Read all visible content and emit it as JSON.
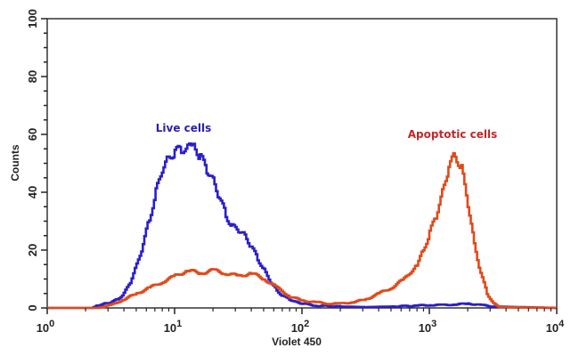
{
  "chart_data": {
    "type": "line",
    "title": "",
    "xlabel": "Violet 450",
    "ylabel": "Counts",
    "xscale": "log",
    "xlim": [
      1,
      10000
    ],
    "ylim": [
      0,
      100
    ],
    "grid": false,
    "x_ticks": [
      {
        "base": "10",
        "exp": "0",
        "value": 1
      },
      {
        "base": "10",
        "exp": "1",
        "value": 10
      },
      {
        "base": "10",
        "exp": "2",
        "value": 100
      },
      {
        "base": "10",
        "exp": "3",
        "value": 1000
      },
      {
        "base": "10",
        "exp": "4",
        "value": 10000
      }
    ],
    "y_ticks": [
      "0",
      "20",
      "40",
      "60",
      "80",
      "100"
    ],
    "y_tick_values": [
      0,
      20,
      40,
      60,
      80,
      100
    ],
    "annotations": [
      {
        "text": "Live cells",
        "series": "Live cells",
        "color": "#2a1fb0"
      },
      {
        "text": "Apoptotic cells",
        "series": "Apoptotic cells",
        "color": "#c0282a"
      }
    ],
    "series": [
      {
        "name": "Live cells",
        "color": "#2a1fc8",
        "log10_x": [
          0.0,
          0.35,
          0.4,
          0.45,
          0.5,
          0.55,
          0.6,
          0.65,
          0.7,
          0.75,
          0.8,
          0.85,
          0.9,
          0.95,
          1.0,
          1.05,
          1.1,
          1.13,
          1.16,
          1.2,
          1.25,
          1.3,
          1.35,
          1.4,
          1.45,
          1.5,
          1.55,
          1.6,
          1.65,
          1.7,
          1.75,
          1.8,
          1.85,
          1.9,
          1.95,
          2.0,
          2.1,
          2.3,
          2.5,
          2.7,
          2.9,
          3.0,
          3.1,
          3.2,
          3.3,
          3.4,
          3.5,
          4.0
        ],
        "counts": [
          0,
          0,
          1,
          1.5,
          2,
          3,
          5,
          9,
          15,
          22,
          31,
          40,
          48,
          52,
          54,
          55,
          55,
          57,
          55,
          52,
          48,
          44,
          38,
          32,
          28,
          27,
          25,
          21,
          17,
          13,
          9,
          6,
          4,
          3,
          2,
          1.5,
          0.8,
          0.5,
          0.3,
          0.5,
          0.8,
          1,
          1,
          1.2,
          1.5,
          1,
          0.5,
          0
        ]
      },
      {
        "name": "Apoptotic cells",
        "color": "#e04a1a",
        "log10_x": [
          0.0,
          0.4,
          0.5,
          0.6,
          0.7,
          0.8,
          0.9,
          1.0,
          1.1,
          1.2,
          1.3,
          1.4,
          1.5,
          1.6,
          1.7,
          1.8,
          1.9,
          2.0,
          2.1,
          2.2,
          2.3,
          2.4,
          2.5,
          2.6,
          2.7,
          2.8,
          2.9,
          2.95,
          3.0,
          3.05,
          3.1,
          3.15,
          3.2,
          3.25,
          3.3,
          3.35,
          3.4,
          3.45,
          3.5,
          3.55,
          4.0
        ],
        "counts": [
          0,
          0,
          1,
          3,
          5,
          7,
          9,
          11,
          13,
          12,
          13,
          12,
          11,
          12,
          10,
          7,
          4,
          2.5,
          2,
          1.5,
          1.5,
          2,
          3,
          5,
          7,
          10,
          15,
          20,
          26,
          32,
          40,
          49,
          53,
          48,
          36,
          22,
          12,
          5,
          1.5,
          0.3,
          0
        ]
      }
    ]
  }
}
